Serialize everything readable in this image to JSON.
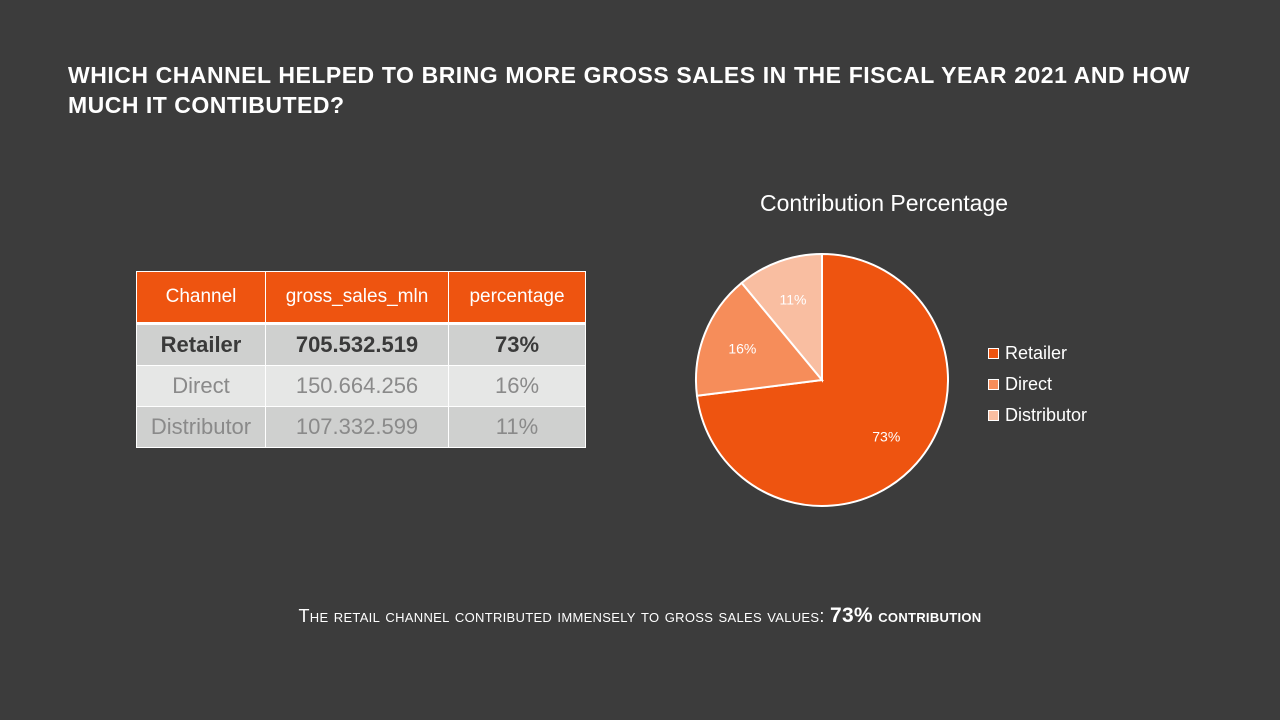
{
  "slide": {
    "title": "Which channel helped to bring more gross sales in the fiscal year 2021 and how much it contibuted?",
    "conclusion_text": "The retail channel contributed immensely to gross sales values:",
    "conclusion_highlight": "73%",
    "conclusion_tail": "contribution"
  },
  "table": {
    "headers": [
      "Channel",
      "gross_sales_mln",
      "percentage"
    ],
    "rows": [
      [
        "Retailer",
        "705.532.519",
        "73%"
      ],
      [
        "Direct",
        "150.664.256",
        "16%"
      ],
      [
        "Distributor",
        "107.332.599",
        "11%"
      ]
    ]
  },
  "chart_data": {
    "type": "pie",
    "title": "Contribution Percentage",
    "categories": [
      "Retailer",
      "Direct",
      "Distributor"
    ],
    "values": [
      73,
      16,
      11
    ],
    "labels": [
      "73%",
      "16%",
      "11%"
    ],
    "colors": [
      "#ee5410",
      "#f68d5a",
      "#f9bea1"
    ],
    "legend": "right"
  }
}
